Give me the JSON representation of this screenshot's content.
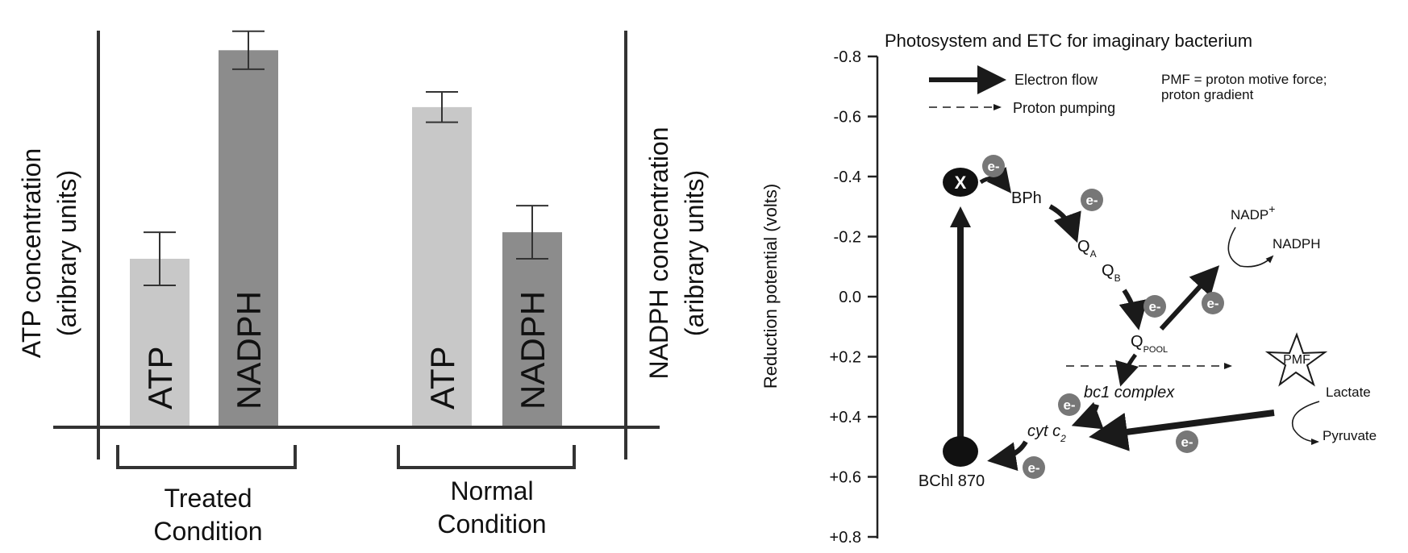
{
  "chart_data": {
    "type": "bar",
    "title": "",
    "ylabel_left": [
      "ATP concentration",
      "(aribrary units)"
    ],
    "ylabel_right": [
      "NADPH concentration",
      "(aribrary units)"
    ],
    "scale": "arbitrary units; no tick labels shown",
    "groups": [
      {
        "label": [
          "Treated",
          "Condition"
        ],
        "bars": [
          {
            "name": "ATP",
            "value": 0.44,
            "error": 0.07,
            "color": "#c8c8c8"
          },
          {
            "name": "NADPH",
            "value": 0.99,
            "error": 0.05,
            "color": "#8c8c8c"
          }
        ]
      },
      {
        "label": [
          "Normal",
          "Condition"
        ],
        "bars": [
          {
            "name": "ATP",
            "value": 0.84,
            "error": 0.04,
            "color": "#c8c8c8"
          },
          {
            "name": "NADPH",
            "value": 0.51,
            "error": 0.07,
            "color": "#8c8c8c"
          }
        ]
      }
    ]
  },
  "diagram": {
    "title": "Photosystem and ETC for imaginary bacterium",
    "ylabel": "Reduction potential (volts)",
    "yticks": [
      "-0.8",
      "-0.6",
      "-0.4",
      "-0.2",
      "0.0",
      "+0.2",
      "+0.4",
      "+0.6",
      "+0.8"
    ],
    "legend": {
      "electron_flow": "Electron flow",
      "proton_pumping": "Proton pumping",
      "pmf_note_line1": "PMF = proton motive force;",
      "pmf_note_line2": "proton gradient"
    },
    "nodes": {
      "x": "X",
      "bph": "BPh",
      "qa": "Q",
      "qa_sub": "A",
      "qb": "Q",
      "qb_sub": "B",
      "qpool": "Q",
      "qpool_sub": "POOL",
      "bc1": "bc1 complex",
      "cyt": "cyt c",
      "cyt_sub": "2",
      "bchl": "BChl 870",
      "nadp": "NADP",
      "nadp_sup": "+",
      "nadph": "NADPH",
      "pmf": "PMF",
      "lactate": "Lactate",
      "pyruvate": "Pyruvate"
    },
    "electron_badge": "e-",
    "colors": {
      "badge": "#777777",
      "ink": "#1a1a1a"
    }
  }
}
